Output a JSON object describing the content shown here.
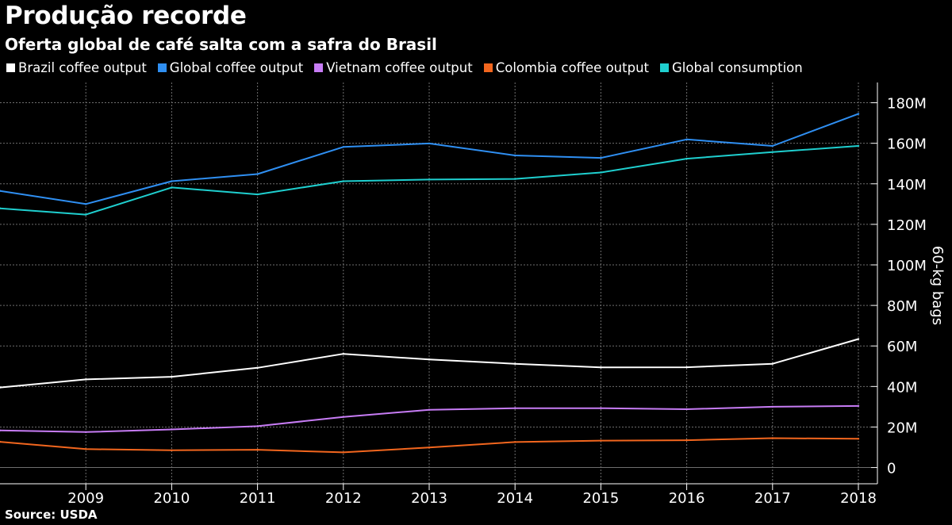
{
  "title": "Produção recorde",
  "subtitle": "Oferta global de café salta com a safra do Brasil",
  "source": "Source:  USDA",
  "chart_data": {
    "type": "line",
    "x": [
      "2008",
      "2009",
      "2010",
      "2011",
      "2012",
      "2013",
      "2014",
      "2015",
      "2016",
      "2017",
      "2018"
    ],
    "x_tick_labels": [
      "2009",
      "2010",
      "2011",
      "2012",
      "2013",
      "2014",
      "2015",
      "2016",
      "2017",
      "2018"
    ],
    "ylabel": "60-kg bags",
    "ylim": [
      -8,
      190
    ],
    "y_ticks": [
      0,
      20,
      40,
      60,
      80,
      100,
      120,
      140,
      160,
      180
    ],
    "y_tick_labels": [
      "0",
      "20M",
      "40M",
      "60M",
      "80M",
      "100M",
      "120M",
      "140M",
      "160M",
      "180M"
    ],
    "grid": true,
    "legend_position": "top-left",
    "series": [
      {
        "name": "Brazil coffee output",
        "color": "#ffffff",
        "values": [
          39.5,
          43.5,
          44.8,
          49.2,
          56.1,
          53.3,
          51.2,
          49.4,
          49.5,
          51.2,
          63.4
        ]
      },
      {
        "name": "Global coffee output",
        "color": "#2f8ff2",
        "values": [
          136.5,
          130.0,
          141.3,
          144.8,
          158.2,
          159.9,
          154.0,
          152.8,
          161.9,
          158.7,
          174.5
        ]
      },
      {
        "name": "Vietnam coffee output",
        "color": "#c77cf5",
        "values": [
          18.3,
          17.5,
          18.8,
          20.4,
          25.0,
          28.5,
          29.3,
          29.3,
          28.8,
          30.0,
          30.4
        ]
      },
      {
        "name": "Colombia coffee output",
        "color": "#f2661e",
        "values": [
          12.7,
          9.1,
          8.5,
          8.8,
          7.5,
          9.9,
          12.6,
          13.3,
          13.5,
          14.5,
          14.2
        ]
      },
      {
        "name": "Global consumption",
        "color": "#1fcfcf",
        "values": [
          127.9,
          124.8,
          138.2,
          134.8,
          141.3,
          142.1,
          142.4,
          145.6,
          152.4,
          155.7,
          158.7
        ]
      }
    ]
  }
}
